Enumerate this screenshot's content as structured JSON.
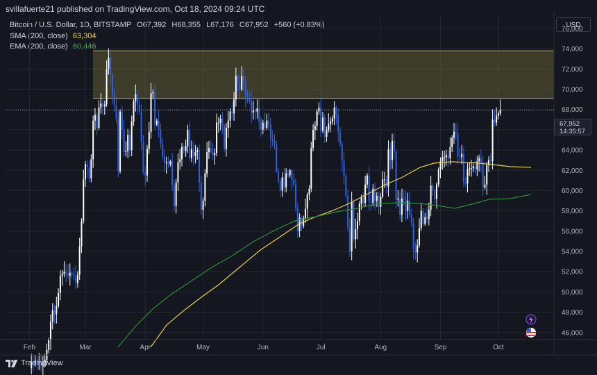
{
  "header": {
    "published_by": "svillafuerte21 published on TradingView.com, Oct 18, 2024 09:24 UTC"
  },
  "legend": {
    "symbol": "Bitcoin / U.S. Dollar, 1D, BITSTAMP",
    "open_label": "O",
    "open": "67,392",
    "high_label": "H",
    "high": "68,355",
    "low_label": "L",
    "low": "67,176",
    "close_label": "C",
    "close": "67,952",
    "change": "+560 (+0.83%)",
    "sma_label": "SMA (200, close)",
    "sma_value": "63,304",
    "ema_label": "EMA (200, close)",
    "ema_value": "60,446"
  },
  "currency_button": "USD",
  "price_label": {
    "price": "67,952",
    "countdown": "14:35:57"
  },
  "brand": "TradingView",
  "colors": {
    "background": "#14171f",
    "bull": "#ffffff",
    "bear": "#2f5fe0",
    "sma": "#e8d24a",
    "ema": "#2e8b3a",
    "zone_fill": "rgba(120,112,60,0.42)",
    "zone_border": "#b8a83c"
  },
  "chart_data": {
    "type": "candlestick",
    "y_ticks": [
      "76,000",
      "74,000",
      "72,000",
      "70,000",
      "68,000",
      "66,000",
      "64,000",
      "62,000",
      "60,000",
      "58,000",
      "56,000",
      "54,000",
      "52,000",
      "50,000",
      "48,000",
      "46,000"
    ],
    "ylim": [
      45300,
      77300
    ],
    "x_ticks": [
      "Feb",
      "Mar",
      "Apr",
      "May",
      "Jun",
      "Jul",
      "Aug",
      "Sep",
      "Oct"
    ],
    "resistance_zone": [
      69100,
      73800
    ],
    "current_price": 67952,
    "points_note": "",
    "close": [
      42500,
      43100,
      42800,
      43200,
      43000,
      43100,
      42700,
      43100,
      43300,
      44300,
      45300,
      47100,
      48200,
      47800,
      48600,
      49900,
      51600,
      51800,
      52000,
      51800,
      51600,
      51900,
      51700,
      51600,
      50900,
      51700,
      54500,
      57000,
      61100,
      62600,
      62300,
      61200,
      63100,
      66900,
      67500,
      66200,
      68200,
      68600,
      68300,
      68500,
      72000,
      73100,
      71400,
      69500,
      68400,
      67100,
      61900,
      67800,
      66000,
      63800,
      63900,
      65500,
      64000,
      66800,
      68800,
      69500,
      68500,
      67800,
      64800,
      61800,
      61500,
      64100,
      65800,
      69600,
      69700,
      66500,
      66900,
      66000,
      64600,
      63400,
      62700,
      62800,
      62600,
      62900,
      60600,
      58500,
      60800,
      62800,
      63100,
      64300,
      63900,
      64400,
      66000,
      63200,
      64100,
      63400,
      63800,
      64000,
      60800,
      58100,
      59000,
      61700,
      63800,
      64200,
      63800,
      63500,
      63700,
      66700,
      66700,
      67100,
      66400,
      64100,
      66200,
      66900,
      67800,
      67600,
      69000,
      71300,
      70700,
      70000,
      71300,
      70700,
      69200,
      69100,
      68800,
      67700,
      67900,
      67800,
      68100,
      66800,
      66000,
      66700,
      66200,
      66900,
      66500,
      65100,
      64900,
      64500,
      61900,
      60900,
      60000,
      61300,
      60300,
      61700,
      61500,
      62000,
      61100,
      60600,
      58300,
      56000,
      57300,
      56500,
      57300,
      58200,
      59600,
      60200,
      64200,
      66000,
      66400,
      67800,
      68200,
      65900,
      67200,
      65300,
      66000,
      66600,
      66800,
      67100,
      68200,
      67500,
      65800,
      64600,
      62900,
      61400,
      59500,
      56300,
      54000,
      58900,
      55200,
      56200,
      57000,
      58700,
      59300,
      58800,
      60600,
      61500,
      58900,
      58800,
      60200,
      59000,
      59500,
      58400,
      59400,
      61100,
      61100,
      60400,
      64100,
      63000,
      64900,
      63900,
      59100,
      59200,
      57600,
      59200,
      59100,
      58000,
      59000,
      57600,
      56800,
      54200,
      53900,
      54600,
      56300,
      58000,
      56700,
      57400,
      57200,
      58100,
      60500,
      60000,
      59200,
      60600,
      62100,
      62900,
      63300,
      63300,
      63500,
      63200,
      64300,
      65200,
      65800,
      65600,
      63400,
      63300,
      63600,
      60800,
      60700,
      62100,
      62200,
      62200,
      62400,
      62100,
      62900,
      63200,
      62800,
      60300,
      60600,
      62500,
      63000,
      62900,
      67000,
      66700,
      67400,
      67600,
      67952
    ]
  }
}
